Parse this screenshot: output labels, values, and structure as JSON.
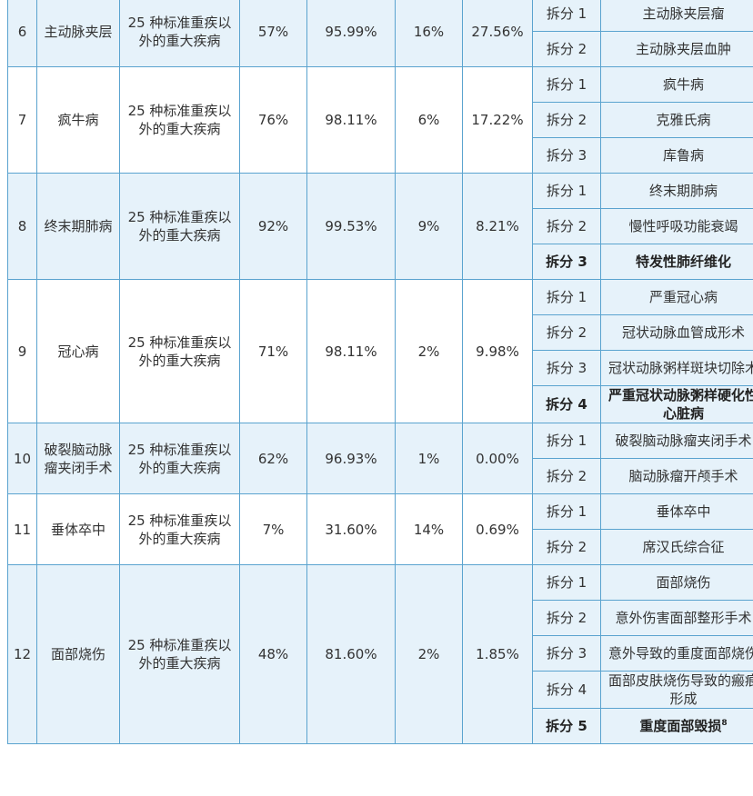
{
  "rows": [
    {
      "no": "6",
      "name": "主动脉夹层",
      "category": "25 种标准重疾以外的重大疾病",
      "v1": "57%",
      "v2": "95.99%",
      "v3": "16%",
      "v4": "27.56%",
      "splits": [
        {
          "label": "拆分 1",
          "desc": "主动脉夹层瘤"
        },
        {
          "label": "拆分 2",
          "desc": "主动脉夹层血肿"
        }
      ]
    },
    {
      "no": "7",
      "name": "疯牛病",
      "category": "25 种标准重疾以外的重大疾病",
      "v1": "76%",
      "v2": "98.11%",
      "v3": "6%",
      "v4": "17.22%",
      "splits": [
        {
          "label": "拆分 1",
          "desc": "疯牛病"
        },
        {
          "label": "拆分 2",
          "desc": "克雅氏病"
        },
        {
          "label": "拆分 3",
          "desc": "库鲁病"
        }
      ]
    },
    {
      "no": "8",
      "name": "终末期肺病",
      "category": "25 种标准重疾以外的重大疾病",
      "v1": "92%",
      "v2": "99.53%",
      "v3": "9%",
      "v4": "8.21%",
      "splits": [
        {
          "label": "拆分 1",
          "desc": "终末期肺病"
        },
        {
          "label": "拆分 2",
          "desc": "慢性呼吸功能衰竭"
        },
        {
          "label": "拆分 3",
          "desc": "特发性肺纤维化"
        }
      ]
    },
    {
      "no": "9",
      "name": "冠心病",
      "category": "25 种标准重疾以外的重大疾病",
      "v1": "71%",
      "v2": "98.11%",
      "v3": "2%",
      "v4": "9.98%",
      "splits": [
        {
          "label": "拆分 1",
          "desc": "严重冠心病"
        },
        {
          "label": "拆分 2",
          "desc": "冠状动脉血管成形术"
        },
        {
          "label": "拆分 3",
          "desc": "冠状动脉粥样斑块切除术"
        },
        {
          "label": "拆分 4",
          "desc": "严重冠状动脉粥样硬化性心脏病"
        }
      ]
    },
    {
      "no": "10",
      "name": "破裂脑动脉瘤夹闭手术",
      "category": "25 种标准重疾以外的重大疾病",
      "v1": "62%",
      "v2": "96.93%",
      "v3": "1%",
      "v4": "0.00%",
      "splits": [
        {
          "label": "拆分 1",
          "desc": "破裂脑动脉瘤夹闭手术"
        },
        {
          "label": "拆分 2",
          "desc": "脑动脉瘤开颅手术"
        }
      ]
    },
    {
      "no": "11",
      "name": "垂体卒中",
      "category": "25 种标准重疾以外的重大疾病",
      "v1": "7%",
      "v2": "31.60%",
      "v3": "14%",
      "v4": "0.69%",
      "splits": [
        {
          "label": "拆分 1",
          "desc": "垂体卒中"
        },
        {
          "label": "拆分 2",
          "desc": "席汉氏综合征"
        }
      ]
    },
    {
      "no": "12",
      "name": "面部烧伤",
      "category": "25 种标准重疾以外的重大疾病",
      "v1": "48%",
      "v2": "81.60%",
      "v3": "2%",
      "v4": "1.85%",
      "splits": [
        {
          "label": "拆分 1",
          "desc": "面部烧伤"
        },
        {
          "label": "拆分 2",
          "desc": "意外伤害面部整形手术"
        },
        {
          "label": "拆分 3",
          "desc": "意外导致的重度面部烧伤"
        },
        {
          "label": "拆分 4",
          "desc": "面部皮肤烧伤导致的瘢痕形成"
        },
        {
          "label": "拆分 5",
          "desc": "重度面部毁损",
          "footnote": "8"
        }
      ]
    }
  ]
}
